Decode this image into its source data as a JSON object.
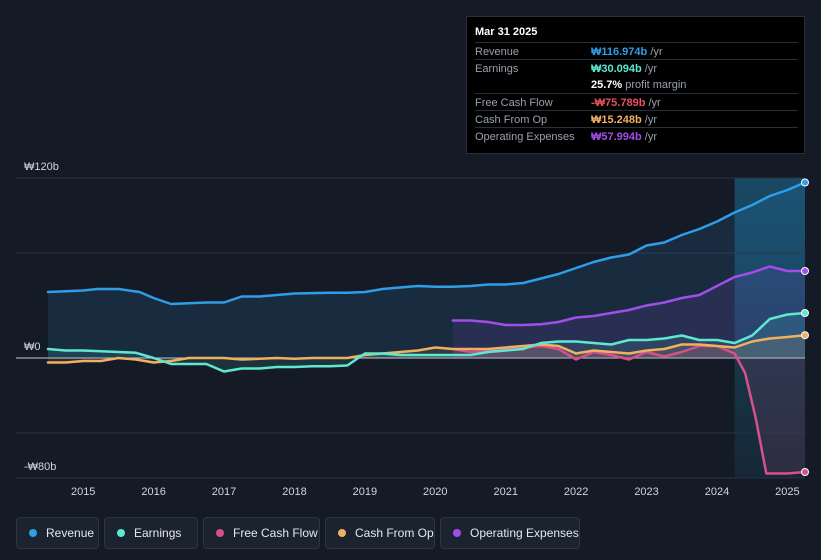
{
  "tooltip": {
    "date": "Mar 31 2025",
    "rows": [
      {
        "label": "Revenue",
        "value": "₩116.974b",
        "unit": " /yr",
        "color": "#2e9ee8"
      },
      {
        "label": "Earnings",
        "value": "₩30.094b",
        "unit": " /yr",
        "color": "#5ee8d2"
      },
      {
        "label": "",
        "value": "25.7%",
        "unit": " profit margin",
        "color": "#ffffff"
      },
      {
        "label": "Free Cash Flow",
        "value": "-₩75.789b",
        "unit": " /yr",
        "color": "#e8505b"
      },
      {
        "label": "Cash From Op",
        "value": "₩15.248b",
        "unit": " /yr",
        "color": "#f0b060"
      },
      {
        "label": "Operating Expenses",
        "value": "₩57.994b",
        "unit": " /yr",
        "color": "#a14ee8"
      }
    ]
  },
  "legend": [
    {
      "label": "Revenue",
      "color": "#2e9ee8"
    },
    {
      "label": "Earnings",
      "color": "#5ee8d2"
    },
    {
      "label": "Free Cash Flow",
      "color": "#d6508a"
    },
    {
      "label": "Cash From Op",
      "color": "#f0b060"
    },
    {
      "label": "Operating Expenses",
      "color": "#a14ee8"
    }
  ],
  "chart_data": {
    "type": "line",
    "title": "",
    "xlabel": "",
    "ylabel": "",
    "ylim": [
      -80,
      120
    ],
    "xlim": [
      2014.5,
      2025.25
    ],
    "y_tick_labels": [
      {
        "value": 120,
        "label": "₩120b"
      },
      {
        "value": 0,
        "label": "₩0"
      },
      {
        "value": -80,
        "label": "-₩80b"
      }
    ],
    "x_ticks": [
      "2015",
      "2016",
      "2017",
      "2018",
      "2019",
      "2020",
      "2021",
      "2022",
      "2023",
      "2024",
      "2025"
    ],
    "highlight_from": 2024.25,
    "series": [
      {
        "name": "Revenue",
        "color": "#2e9ee8",
        "points": [
          [
            2014.5,
            44
          ],
          [
            2015.0,
            45
          ],
          [
            2015.2,
            46
          ],
          [
            2015.5,
            46
          ],
          [
            2015.8,
            44
          ],
          [
            2016.0,
            40
          ],
          [
            2016.25,
            36
          ],
          [
            2016.5,
            36.5
          ],
          [
            2016.75,
            37
          ],
          [
            2017.0,
            37
          ],
          [
            2017.25,
            41
          ],
          [
            2017.5,
            41
          ],
          [
            2017.75,
            42
          ],
          [
            2018.0,
            43
          ],
          [
            2018.5,
            43.5
          ],
          [
            2018.75,
            43.5
          ],
          [
            2019.0,
            44
          ],
          [
            2019.25,
            46
          ],
          [
            2019.5,
            47
          ],
          [
            2019.75,
            48
          ],
          [
            2020.0,
            47.5
          ],
          [
            2020.25,
            47.5
          ],
          [
            2020.5,
            48
          ],
          [
            2020.75,
            49
          ],
          [
            2021.0,
            49
          ],
          [
            2021.25,
            50
          ],
          [
            2021.5,
            53
          ],
          [
            2021.75,
            56
          ],
          [
            2022.0,
            60
          ],
          [
            2022.25,
            64
          ],
          [
            2022.5,
            67
          ],
          [
            2022.75,
            69
          ],
          [
            2023.0,
            75
          ],
          [
            2023.25,
            77
          ],
          [
            2023.5,
            82
          ],
          [
            2023.75,
            86
          ],
          [
            2024.0,
            91
          ],
          [
            2024.25,
            97
          ],
          [
            2024.5,
            102
          ],
          [
            2024.75,
            108
          ],
          [
            2025.0,
            112
          ],
          [
            2025.25,
            117
          ]
        ]
      },
      {
        "name": "Earnings",
        "color": "#5ee8d2",
        "points": [
          [
            2014.5,
            6
          ],
          [
            2014.75,
            5
          ],
          [
            2015.0,
            5
          ],
          [
            2015.25,
            4.5
          ],
          [
            2015.5,
            4
          ],
          [
            2015.75,
            3.5
          ],
          [
            2016.0,
            0
          ],
          [
            2016.25,
            -4
          ],
          [
            2016.5,
            -4
          ],
          [
            2016.75,
            -4
          ],
          [
            2017.0,
            -9
          ],
          [
            2017.25,
            -7
          ],
          [
            2017.5,
            -7
          ],
          [
            2017.75,
            -6
          ],
          [
            2018.0,
            -6
          ],
          [
            2018.25,
            -5.5
          ],
          [
            2018.5,
            -5.5
          ],
          [
            2018.75,
            -5
          ],
          [
            2019.0,
            3
          ],
          [
            2019.25,
            3
          ],
          [
            2019.5,
            2
          ],
          [
            2019.75,
            2
          ],
          [
            2020.0,
            2
          ],
          [
            2020.25,
            2
          ],
          [
            2020.5,
            2
          ],
          [
            2020.75,
            4
          ],
          [
            2021.0,
            5
          ],
          [
            2021.25,
            6
          ],
          [
            2021.5,
            10
          ],
          [
            2021.75,
            11
          ],
          [
            2022.0,
            11
          ],
          [
            2022.25,
            10
          ],
          [
            2022.5,
            9
          ],
          [
            2022.75,
            12
          ],
          [
            2023.0,
            12
          ],
          [
            2023.25,
            13
          ],
          [
            2023.5,
            15
          ],
          [
            2023.75,
            12
          ],
          [
            2024.0,
            12
          ],
          [
            2024.25,
            10
          ],
          [
            2024.5,
            15
          ],
          [
            2024.75,
            26
          ],
          [
            2025.0,
            29
          ],
          [
            2025.25,
            30
          ]
        ]
      },
      {
        "name": "Free Cash Flow",
        "color": "#d6508a",
        "points": [
          [
            2020.25,
            6
          ],
          [
            2020.5,
            4
          ],
          [
            2020.75,
            5
          ],
          [
            2021.0,
            6
          ],
          [
            2021.25,
            7
          ],
          [
            2021.5,
            8
          ],
          [
            2021.75,
            6
          ],
          [
            2022.0,
            -1
          ],
          [
            2022.25,
            4
          ],
          [
            2022.5,
            2
          ],
          [
            2022.75,
            -1
          ],
          [
            2023.0,
            4
          ],
          [
            2023.25,
            1
          ],
          [
            2023.5,
            4
          ],
          [
            2023.75,
            8
          ],
          [
            2024.0,
            8
          ],
          [
            2024.25,
            3
          ],
          [
            2024.4,
            -10
          ],
          [
            2024.55,
            -40
          ],
          [
            2024.7,
            -77
          ],
          [
            2025.0,
            -77
          ],
          [
            2025.25,
            -76
          ]
        ]
      },
      {
        "name": "Cash From Op",
        "color": "#f0b060",
        "points": [
          [
            2014.5,
            -3
          ],
          [
            2014.75,
            -3
          ],
          [
            2015.0,
            -2
          ],
          [
            2015.25,
            -2
          ],
          [
            2015.5,
            0
          ],
          [
            2015.75,
            -1
          ],
          [
            2016.0,
            -3
          ],
          [
            2016.25,
            -2
          ],
          [
            2016.5,
            0
          ],
          [
            2016.75,
            0
          ],
          [
            2017.0,
            0
          ],
          [
            2017.25,
            -1
          ],
          [
            2017.5,
            -0.5
          ],
          [
            2017.75,
            0
          ],
          [
            2018.0,
            -0.5
          ],
          [
            2018.25,
            0
          ],
          [
            2018.5,
            0
          ],
          [
            2018.75,
            0
          ],
          [
            2019.0,
            2
          ],
          [
            2019.25,
            3
          ],
          [
            2019.5,
            4
          ],
          [
            2019.75,
            5
          ],
          [
            2020.0,
            7
          ],
          [
            2020.25,
            6
          ],
          [
            2020.5,
            6
          ],
          [
            2020.75,
            6
          ],
          [
            2021.0,
            7
          ],
          [
            2021.25,
            8
          ],
          [
            2021.5,
            9
          ],
          [
            2021.75,
            8
          ],
          [
            2022.0,
            3
          ],
          [
            2022.25,
            5
          ],
          [
            2022.5,
            4
          ],
          [
            2022.75,
            3
          ],
          [
            2023.0,
            5
          ],
          [
            2023.25,
            6
          ],
          [
            2023.5,
            9
          ],
          [
            2023.75,
            9
          ],
          [
            2024.0,
            8
          ],
          [
            2024.25,
            7
          ],
          [
            2024.5,
            11
          ],
          [
            2024.75,
            13
          ],
          [
            2025.0,
            14
          ],
          [
            2025.25,
            15.2
          ]
        ]
      },
      {
        "name": "Operating Expenses",
        "color": "#a14ee8",
        "points": [
          [
            2020.25,
            25
          ],
          [
            2020.5,
            25
          ],
          [
            2020.75,
            24
          ],
          [
            2021.0,
            22
          ],
          [
            2021.25,
            22
          ],
          [
            2021.5,
            22.5
          ],
          [
            2021.75,
            24
          ],
          [
            2022.0,
            27
          ],
          [
            2022.25,
            28
          ],
          [
            2022.5,
            30
          ],
          [
            2022.75,
            32
          ],
          [
            2023.0,
            35
          ],
          [
            2023.25,
            37
          ],
          [
            2023.5,
            40
          ],
          [
            2023.75,
            42
          ],
          [
            2024.0,
            48
          ],
          [
            2024.25,
            54
          ],
          [
            2024.5,
            57
          ],
          [
            2024.75,
            61
          ],
          [
            2025.0,
            58
          ],
          [
            2025.25,
            58
          ]
        ]
      }
    ]
  }
}
